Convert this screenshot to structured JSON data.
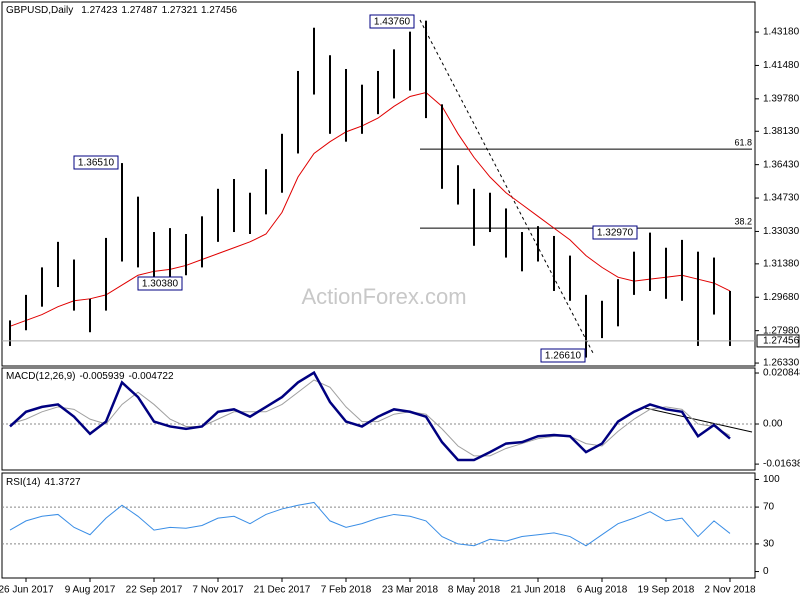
{
  "chart_data": [
    {
      "type": "ohlc",
      "title": "GBPUSD,Daily",
      "last_bar": {
        "open": 1.27423,
        "high": 1.27487,
        "low": 1.27321,
        "close": 1.27456
      },
      "watermark": "ActionForex.com",
      "color": "#000000",
      "high": [
        1.285,
        1.298,
        1.312,
        1.325,
        1.316,
        1.296,
        1.327,
        1.3651,
        1.348,
        1.33,
        1.332,
        1.329,
        1.338,
        1.352,
        1.357,
        1.35,
        1.362,
        1.38,
        1.412,
        1.434,
        1.42,
        1.413,
        1.405,
        1.412,
        1.423,
        1.432,
        1.4376,
        1.395,
        1.364,
        1.352,
        1.35,
        1.342,
        1.33,
        1.333,
        1.328,
        1.318,
        1.298,
        1.295,
        1.306,
        1.32,
        1.3297,
        1.322,
        1.326,
        1.32,
        1.317,
        1.3
      ],
      "low": [
        1.272,
        1.28,
        1.292,
        1.302,
        1.29,
        1.279,
        1.29,
        1.315,
        1.312,
        1.3038,
        1.306,
        1.308,
        1.312,
        1.325,
        1.33,
        1.329,
        1.339,
        1.35,
        1.37,
        1.4,
        1.38,
        1.376,
        1.38,
        1.39,
        1.398,
        1.402,
        1.388,
        1.352,
        1.344,
        1.323,
        1.33,
        1.317,
        1.31,
        1.315,
        1.3,
        1.295,
        1.2661,
        1.276,
        1.282,
        1.298,
        1.3,
        1.296,
        1.295,
        1.272,
        1.288,
        1.272
      ],
      "ma": {
        "color": "#e00000",
        "values": [
          1.282,
          1.285,
          1.288,
          1.292,
          1.295,
          1.296,
          1.298,
          1.303,
          1.308,
          1.31,
          1.311,
          1.313,
          1.316,
          1.319,
          1.322,
          1.325,
          1.329,
          1.34,
          1.358,
          1.37,
          1.376,
          1.381,
          1.384,
          1.388,
          1.394,
          1.399,
          1.401,
          1.394,
          1.38,
          1.368,
          1.358,
          1.35,
          1.344,
          1.338,
          1.332,
          1.326,
          1.318,
          1.312,
          1.307,
          1.305,
          1.306,
          1.307,
          1.308,
          1.306,
          1.304,
          1.3
        ]
      },
      "annotations": [
        {
          "value": 1.4376,
          "label": "1.43760"
        },
        {
          "value": 1.3651,
          "label": "1.36510"
        },
        {
          "value": 1.3038,
          "label": "1.30380"
        },
        {
          "value": 1.3297,
          "label": "1.32970"
        },
        {
          "value": 1.2661,
          "label": "1.26610"
        }
      ],
      "fib_levels": [
        {
          "label": "61.8",
          "value": 1.3722
        },
        {
          "label": "38.2",
          "value": 1.332
        }
      ],
      "ylim": [
        1.2618,
        1.4471
      ],
      "yticks": [
        {
          "value": 1.4318,
          "label": "1.43180"
        },
        {
          "value": 1.4148,
          "label": "1.41480"
        },
        {
          "value": 1.3978,
          "label": "1.39780"
        },
        {
          "value": 1.3813,
          "label": "1.38130"
        },
        {
          "value": 1.3643,
          "label": "1.36430"
        },
        {
          "value": 1.3473,
          "label": "1.34730"
        },
        {
          "value": 1.3303,
          "label": "1.33030"
        },
        {
          "value": 1.3138,
          "label": "1.31380"
        },
        {
          "value": 1.2968,
          "label": "1.29680"
        },
        {
          "value": 1.2798,
          "label": "1.27980"
        },
        {
          "value": 1.2633,
          "label": "1.26330"
        }
      ]
    },
    {
      "type": "line",
      "title": "MACD(12,26,9)",
      "series": [
        {
          "color": "#000080",
          "values": [
            -0.001,
            0.005,
            0.007,
            0.008,
            0.003,
            -0.004,
            0.001,
            0.017,
            0.011,
            0.001,
            -0.001,
            -0.002,
            -0.001,
            0.005,
            0.006,
            0.003,
            0.007,
            0.011,
            0.017,
            0.021,
            0.009,
            0.001,
            -0.001,
            0.003,
            0.006,
            0.005,
            0.003,
            -0.0074,
            -0.0147,
            -0.0147,
            -0.0115,
            -0.008,
            -0.0074,
            -0.005,
            -0.0045,
            -0.005,
            -0.0115,
            -0.008,
            0.001,
            0.005,
            0.008,
            0.006,
            0.005,
            -0.005,
            -0.0004,
            -0.005939
          ]
        },
        {
          "color": "#a0a0a0",
          "values": [
            0.0,
            0.002,
            0.005,
            0.007,
            0.006,
            0.002,
            0.0,
            0.008,
            0.013,
            0.008,
            0.002,
            -0.001,
            -0.001,
            0.002,
            0.005,
            0.005,
            0.005,
            0.008,
            0.013,
            0.018,
            0.015,
            0.007,
            0.001,
            0.001,
            0.004,
            0.005,
            0.004,
            -0.002,
            -0.009,
            -0.013,
            -0.013,
            -0.01,
            -0.008,
            -0.006,
            -0.005,
            -0.005,
            -0.008,
            -0.009,
            -0.003,
            0.002,
            0.006,
            0.007,
            0.006,
            0.0,
            -0.001,
            -0.004722
          ]
        }
      ],
      "levels": [
        0
      ],
      "ylim": [
        -0.0188,
        0.0229
      ],
      "yticks": [
        0.020848,
        {
          "value": 0,
          "label": "0.00"
        },
        -0.016389
      ]
    },
    {
      "type": "line",
      "title": "RSI(14)",
      "series": [
        {
          "color": "#3a8ee6",
          "values": [
            45,
            55,
            60,
            62,
            48,
            40,
            58,
            72,
            60,
            45,
            48,
            47,
            50,
            58,
            60,
            52,
            62,
            68,
            72,
            75,
            55,
            48,
            52,
            58,
            62,
            60,
            55,
            38,
            30,
            28,
            35,
            33,
            38,
            40,
            42,
            38,
            28,
            40,
            52,
            58,
            65,
            55,
            58,
            38,
            55,
            41.3727
          ]
        }
      ],
      "levels": [
        70,
        30
      ],
      "ylim": [
        -7,
        107
      ],
      "yticks": [
        100,
        70,
        30,
        0
      ],
      "categories": [
        null,
        "26 Jun 2017",
        null,
        null,
        null,
        "9 Aug 2017",
        null,
        null,
        null,
        "22 Sep 2017",
        null,
        null,
        null,
        "7 Nov 2017",
        null,
        null,
        null,
        "21 Dec 2017",
        null,
        null,
        null,
        "7 Feb 2018",
        null,
        null,
        null,
        "23 Mar 2018",
        null,
        null,
        null,
        "8 May 2018",
        null,
        null,
        null,
        "21 Jun 2018",
        null,
        null,
        null,
        "6 Aug 2018",
        null,
        null,
        null,
        "19 Sep 2018",
        null,
        null,
        null,
        "2 Nov 2018"
      ]
    }
  ]
}
